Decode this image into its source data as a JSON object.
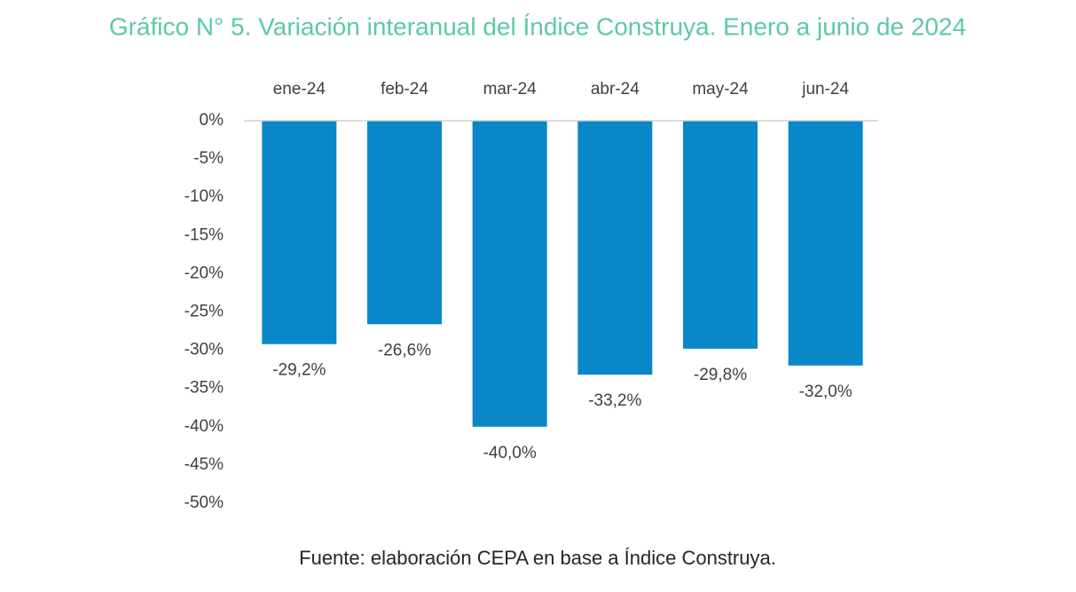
{
  "chart_data": {
    "type": "bar",
    "title": "Gráfico N° 5. Variación interanual del Índice Construya. Enero a junio de 2024",
    "categories": [
      "ene-24",
      "feb-24",
      "mar-24",
      "abr-24",
      "may-24",
      "jun-24"
    ],
    "values": [
      -29.2,
      -26.6,
      -40.0,
      -33.2,
      -29.8,
      -32.0
    ],
    "value_labels": [
      "-29,2%",
      "-26,6%",
      "-40,0%",
      "-33,2%",
      "-29,8%",
      "-32,0%"
    ],
    "color": "#0a87c9",
    "ylim": [
      -50,
      0
    ],
    "yticks": [
      {
        "value": 0,
        "label": "0%"
      },
      {
        "value": -5,
        "label": "-5%"
      },
      {
        "value": -10,
        "label": "-10%"
      },
      {
        "value": -15,
        "label": "-15%"
      },
      {
        "value": -20,
        "label": "-20%"
      },
      {
        "value": -25,
        "label": "-25%"
      },
      {
        "value": -30,
        "label": "-30%"
      },
      {
        "value": -35,
        "label": "-35%"
      },
      {
        "value": -40,
        "label": "-40%"
      },
      {
        "value": -45,
        "label": "-45%"
      },
      {
        "value": -50,
        "label": "-50%"
      }
    ],
    "note": "Fuente: elaboración CEPA en base a Índice Construya."
  }
}
